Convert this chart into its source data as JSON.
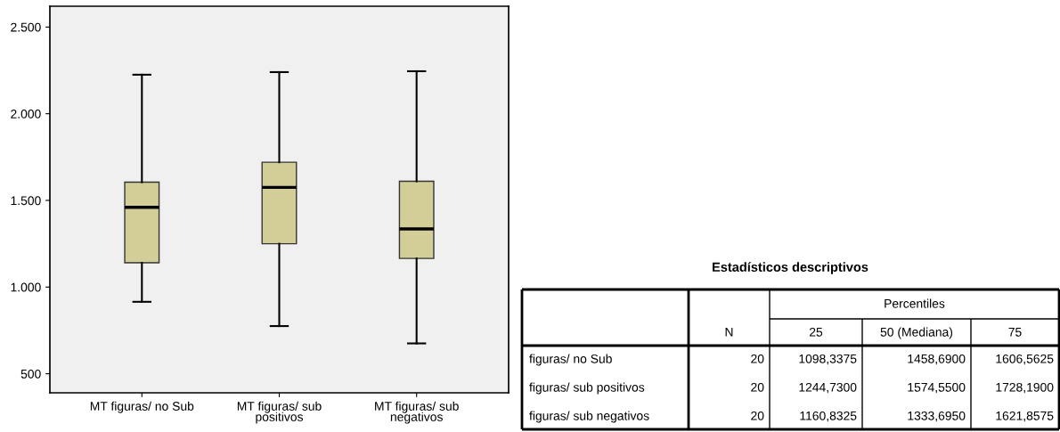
{
  "chart_data": [
    {
      "type": "box",
      "categories": [
        "MT figuras/ no Sub",
        "MT figuras/ sub\npositivos",
        "MT figuras/ sub\nnegativos"
      ],
      "color": "#d3ce97",
      "boxes": [
        {
          "low": 915,
          "q1": 1140,
          "median": 1460,
          "q3": 1605,
          "high": 2225
        },
        {
          "low": 775,
          "q1": 1250,
          "median": 1575,
          "q3": 1720,
          "high": 2240
        },
        {
          "low": 675,
          "q1": 1165,
          "median": 1335,
          "q3": 1610,
          "high": 2245
        }
      ],
      "ylim": [
        390,
        2620
      ],
      "yticks": [
        {
          "value": 500,
          "label": "500"
        },
        {
          "value": 1000,
          "label": "1.000"
        },
        {
          "value": 1500,
          "label": "1.500"
        },
        {
          "value": 2000,
          "label": "2.000"
        },
        {
          "value": 2500,
          "label": "2.500"
        }
      ],
      "grid": false
    },
    {
      "type": "other",
      "title": "Estadísticos descriptivos",
      "annotations": [
        "Percentiles",
        "N",
        "25",
        "50 (Mediana)",
        "75",
        "figuras/ no Sub",
        "20",
        "1098,3375",
        "1458,6900",
        "1606,5625",
        "figuras/ sub positivos",
        "20",
        "1244,7300",
        "1574,5500",
        "1728,1900",
        "figuras/ sub negativos",
        "20",
        "1160,8325",
        "1333,6950",
        "1621,8575"
      ]
    }
  ]
}
